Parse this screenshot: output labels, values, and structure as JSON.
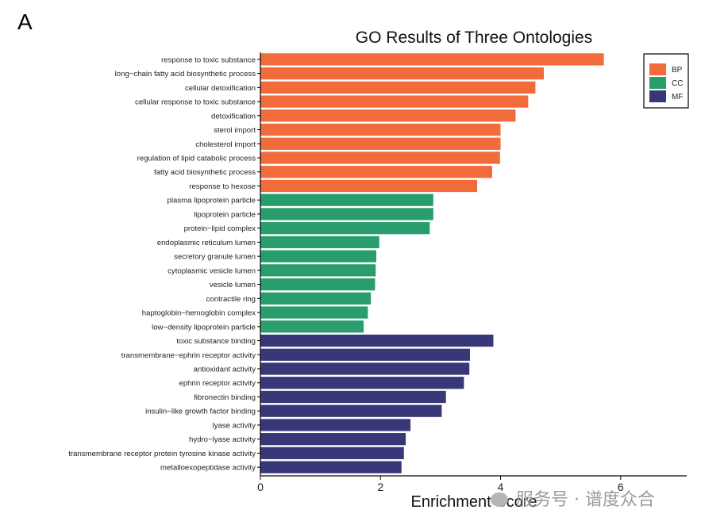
{
  "panel_label": "A",
  "watermark": "服务号 · 谱度众合",
  "chart_data": {
    "type": "bar",
    "orientation": "horizontal",
    "title": "GO Results of Three Ontologies",
    "xlabel": "Enrichment Score",
    "ylabel": "",
    "xlim": [
      0,
      7.1
    ],
    "xticks": [
      0,
      2,
      4,
      6
    ],
    "grid": false,
    "legend_position": "top-right",
    "legend": [
      {
        "name": "BP",
        "color": "#F26B3A"
      },
      {
        "name": "CC",
        "color": "#2A9D6E"
      },
      {
        "name": "MF",
        "color": "#383879"
      }
    ],
    "categories": [
      "response to toxic substance",
      "long−chain fatty acid biosynthetic process",
      "cellular detoxification",
      "cellular response to toxic substance",
      "detoxification",
      "sterol import",
      "cholesterol import",
      "regulation of lipid catabolic process",
      "fatty acid biosynthetic process",
      "response to hexose",
      "plasma lipoprotein particle",
      "lipoprotein particle",
      "protein−lipid complex",
      "endoplasmic reticulum lumen",
      "secretory granule lumen",
      "cytoplasmic vesicle lumen",
      "vesicle lumen",
      "contractile ring",
      "haptoglobin−hemoglobin complex",
      "low−density lipoprotein particle",
      "toxic substance binding",
      "transmembrane−ephrin receptor activity",
      "antioxidant activity",
      "ephrin receptor activity",
      "fibronectin binding",
      "insulin−like growth factor binding",
      "lyase activity",
      "hydro−lyase activity",
      "transmembrane receptor protein tyrosine kinase activity",
      "metalloexopeptidase activity"
    ],
    "values": [
      5.72,
      4.72,
      4.58,
      4.46,
      4.25,
      4.0,
      4.0,
      3.99,
      3.86,
      3.61,
      2.88,
      2.88,
      2.82,
      1.98,
      1.93,
      1.92,
      1.91,
      1.84,
      1.79,
      1.72,
      3.88,
      3.49,
      3.48,
      3.39,
      3.09,
      3.02,
      2.5,
      2.42,
      2.39,
      2.35
    ],
    "groups": [
      "BP",
      "BP",
      "BP",
      "BP",
      "BP",
      "BP",
      "BP",
      "BP",
      "BP",
      "BP",
      "CC",
      "CC",
      "CC",
      "CC",
      "CC",
      "CC",
      "CC",
      "CC",
      "CC",
      "CC",
      "MF",
      "MF",
      "MF",
      "MF",
      "MF",
      "MF",
      "MF",
      "MF",
      "MF",
      "MF"
    ]
  }
}
